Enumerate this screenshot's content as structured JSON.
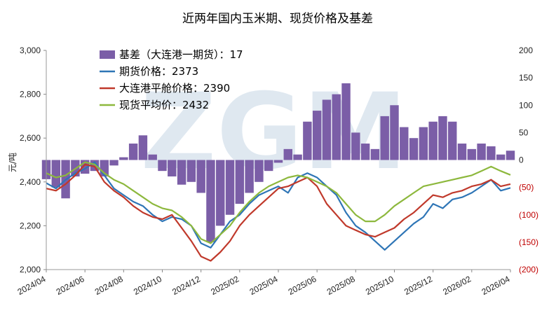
{
  "chart_data": {
    "type": "bar+line",
    "title": "近两年国内玉米期、现货价格及基差",
    "ylabel": "元/吨",
    "watermark": "ZGM",
    "left_axis": {
      "ylim": [
        2000,
        3000
      ],
      "ticks": [
        "2,000",
        "2,200",
        "2,400",
        "2,600",
        "2,800",
        "3,000"
      ]
    },
    "right_axis": {
      "ylim": [
        -200,
        200
      ],
      "ticks": [
        "(200)",
        "(150)",
        "(100)",
        "(50)",
        "0",
        "50",
        "100",
        "150",
        "200"
      ]
    },
    "x_ticks": [
      "2024/04",
      "2024/06",
      "2024/08",
      "2024/10",
      "2024/12",
      "2025/02",
      "2025/04",
      "2025/06",
      "2025/08",
      "2025/10",
      "2025/12",
      "2026/02",
      "2026/04"
    ],
    "legend": [
      {
        "label": "基差（大连港一期货）：17",
        "type": "bar",
        "color": "#7b5ea7"
      },
      {
        "label": "期货价格：2373",
        "type": "line",
        "color": "#2e75b6"
      },
      {
        "label": "大连港平舱价格：2390",
        "type": "line",
        "color": "#c0392b"
      },
      {
        "label": "现货平均价：2432",
        "type": "line",
        "color": "#8db83d"
      }
    ],
    "series": [
      {
        "name": "期货价格",
        "axis": "left",
        "color": "#2e75b6",
        "x": [
          0,
          0.5,
          1,
          1.5,
          2,
          2.5,
          3,
          3.5,
          4,
          4.5,
          5,
          5.5,
          6,
          6.5,
          7,
          7.5,
          8,
          8.5,
          9,
          9.5,
          10,
          10.5,
          11,
          11.5,
          12,
          12.5,
          13,
          13.5,
          14,
          14.5,
          15,
          15.5,
          16,
          16.5,
          17,
          17.5,
          18,
          18.5,
          19,
          19.5,
          20,
          20.5,
          21,
          21.5,
          22,
          22.5,
          23,
          23.5,
          24
        ],
        "values": [
          2395,
          2370,
          2410,
          2440,
          2460,
          2490,
          2430,
          2370,
          2340,
          2310,
          2290,
          2250,
          2220,
          2240,
          2230,
          2200,
          2120,
          2100,
          2160,
          2220,
          2250,
          2300,
          2340,
          2360,
          2380,
          2350,
          2420,
          2440,
          2420,
          2380,
          2340,
          2260,
          2200,
          2170,
          2130,
          2090,
          2130,
          2170,
          2210,
          2240,
          2300,
          2280,
          2320,
          2330,
          2350,
          2380,
          2410,
          2360,
          2373
        ]
      },
      {
        "name": "大连港平舱价格",
        "axis": "left",
        "color": "#c0392b",
        "x": [
          0,
          0.5,
          1,
          1.5,
          2,
          2.5,
          3,
          3.5,
          4,
          4.5,
          5,
          5.5,
          6,
          6.5,
          7,
          7.5,
          8,
          8.5,
          9,
          9.5,
          10,
          10.5,
          11,
          11.5,
          12,
          12.5,
          13,
          13.5,
          14,
          14.5,
          15,
          15.5,
          16,
          16.5,
          17,
          17.5,
          18,
          18.5,
          19,
          19.5,
          20,
          20.5,
          21,
          21.5,
          22,
          22.5,
          23,
          23.5,
          24
        ],
        "values": [
          2370,
          2360,
          2390,
          2430,
          2480,
          2470,
          2400,
          2360,
          2330,
          2290,
          2260,
          2240,
          2230,
          2250,
          2190,
          2130,
          2060,
          2040,
          2080,
          2130,
          2200,
          2250,
          2290,
          2330,
          2370,
          2380,
          2400,
          2420,
          2380,
          2300,
          2250,
          2200,
          2180,
          2160,
          2150,
          2170,
          2190,
          2230,
          2260,
          2300,
          2340,
          2330,
          2350,
          2360,
          2380,
          2390,
          2410,
          2380,
          2390
        ]
      },
      {
        "name": "现货平均价",
        "axis": "left",
        "color": "#8db83d",
        "x": [
          0,
          0.5,
          1,
          1.5,
          2,
          2.5,
          3,
          3.5,
          4,
          4.5,
          5,
          5.5,
          6,
          6.5,
          7,
          7.5,
          8,
          8.5,
          9,
          9.5,
          10,
          10.5,
          11,
          11.5,
          12,
          12.5,
          13,
          13.5,
          14,
          14.5,
          15,
          15.5,
          16,
          16.5,
          17,
          17.5,
          18,
          18.5,
          19,
          19.5,
          20,
          20.5,
          21,
          21.5,
          22,
          22.5,
          23,
          23.5,
          24
        ],
        "values": [
          2440,
          2420,
          2430,
          2460,
          2490,
          2480,
          2440,
          2410,
          2390,
          2360,
          2330,
          2300,
          2280,
          2270,
          2240,
          2200,
          2140,
          2120,
          2160,
          2200,
          2260,
          2310,
          2350,
          2380,
          2400,
          2420,
          2430,
          2420,
          2400,
          2380,
          2350,
          2300,
          2250,
          2220,
          2220,
          2250,
          2290,
          2320,
          2350,
          2380,
          2390,
          2400,
          2410,
          2420,
          2430,
          2450,
          2470,
          2450,
          2432
        ]
      },
      {
        "name": "基差",
        "axis": "right",
        "type": "bar",
        "color": "#7b5ea7",
        "x": [
          0,
          0.5,
          1,
          1.5,
          2,
          2.5,
          3,
          3.5,
          4,
          4.5,
          5,
          5.5,
          6,
          6.5,
          7,
          7.5,
          8,
          8.5,
          9,
          9.5,
          10,
          10.5,
          11,
          11.5,
          12,
          12.5,
          13,
          13.5,
          14,
          14.5,
          15,
          15.5,
          16,
          16.5,
          17,
          17.5,
          18,
          18.5,
          19,
          19.5,
          20,
          20.5,
          21,
          21.5,
          22,
          22.5,
          23,
          23.5,
          24
        ],
        "values": [
          -35,
          -50,
          -70,
          -30,
          -25,
          -20,
          -30,
          -10,
          5,
          30,
          45,
          10,
          -20,
          -30,
          -45,
          -40,
          -60,
          -150,
          -120,
          -100,
          -80,
          -60,
          -40,
          -20,
          -5,
          20,
          10,
          70,
          90,
          110,
          120,
          140,
          50,
          30,
          20,
          80,
          100,
          60,
          40,
          60,
          70,
          80,
          70,
          30,
          20,
          30,
          25,
          10,
          17
        ]
      }
    ]
  }
}
